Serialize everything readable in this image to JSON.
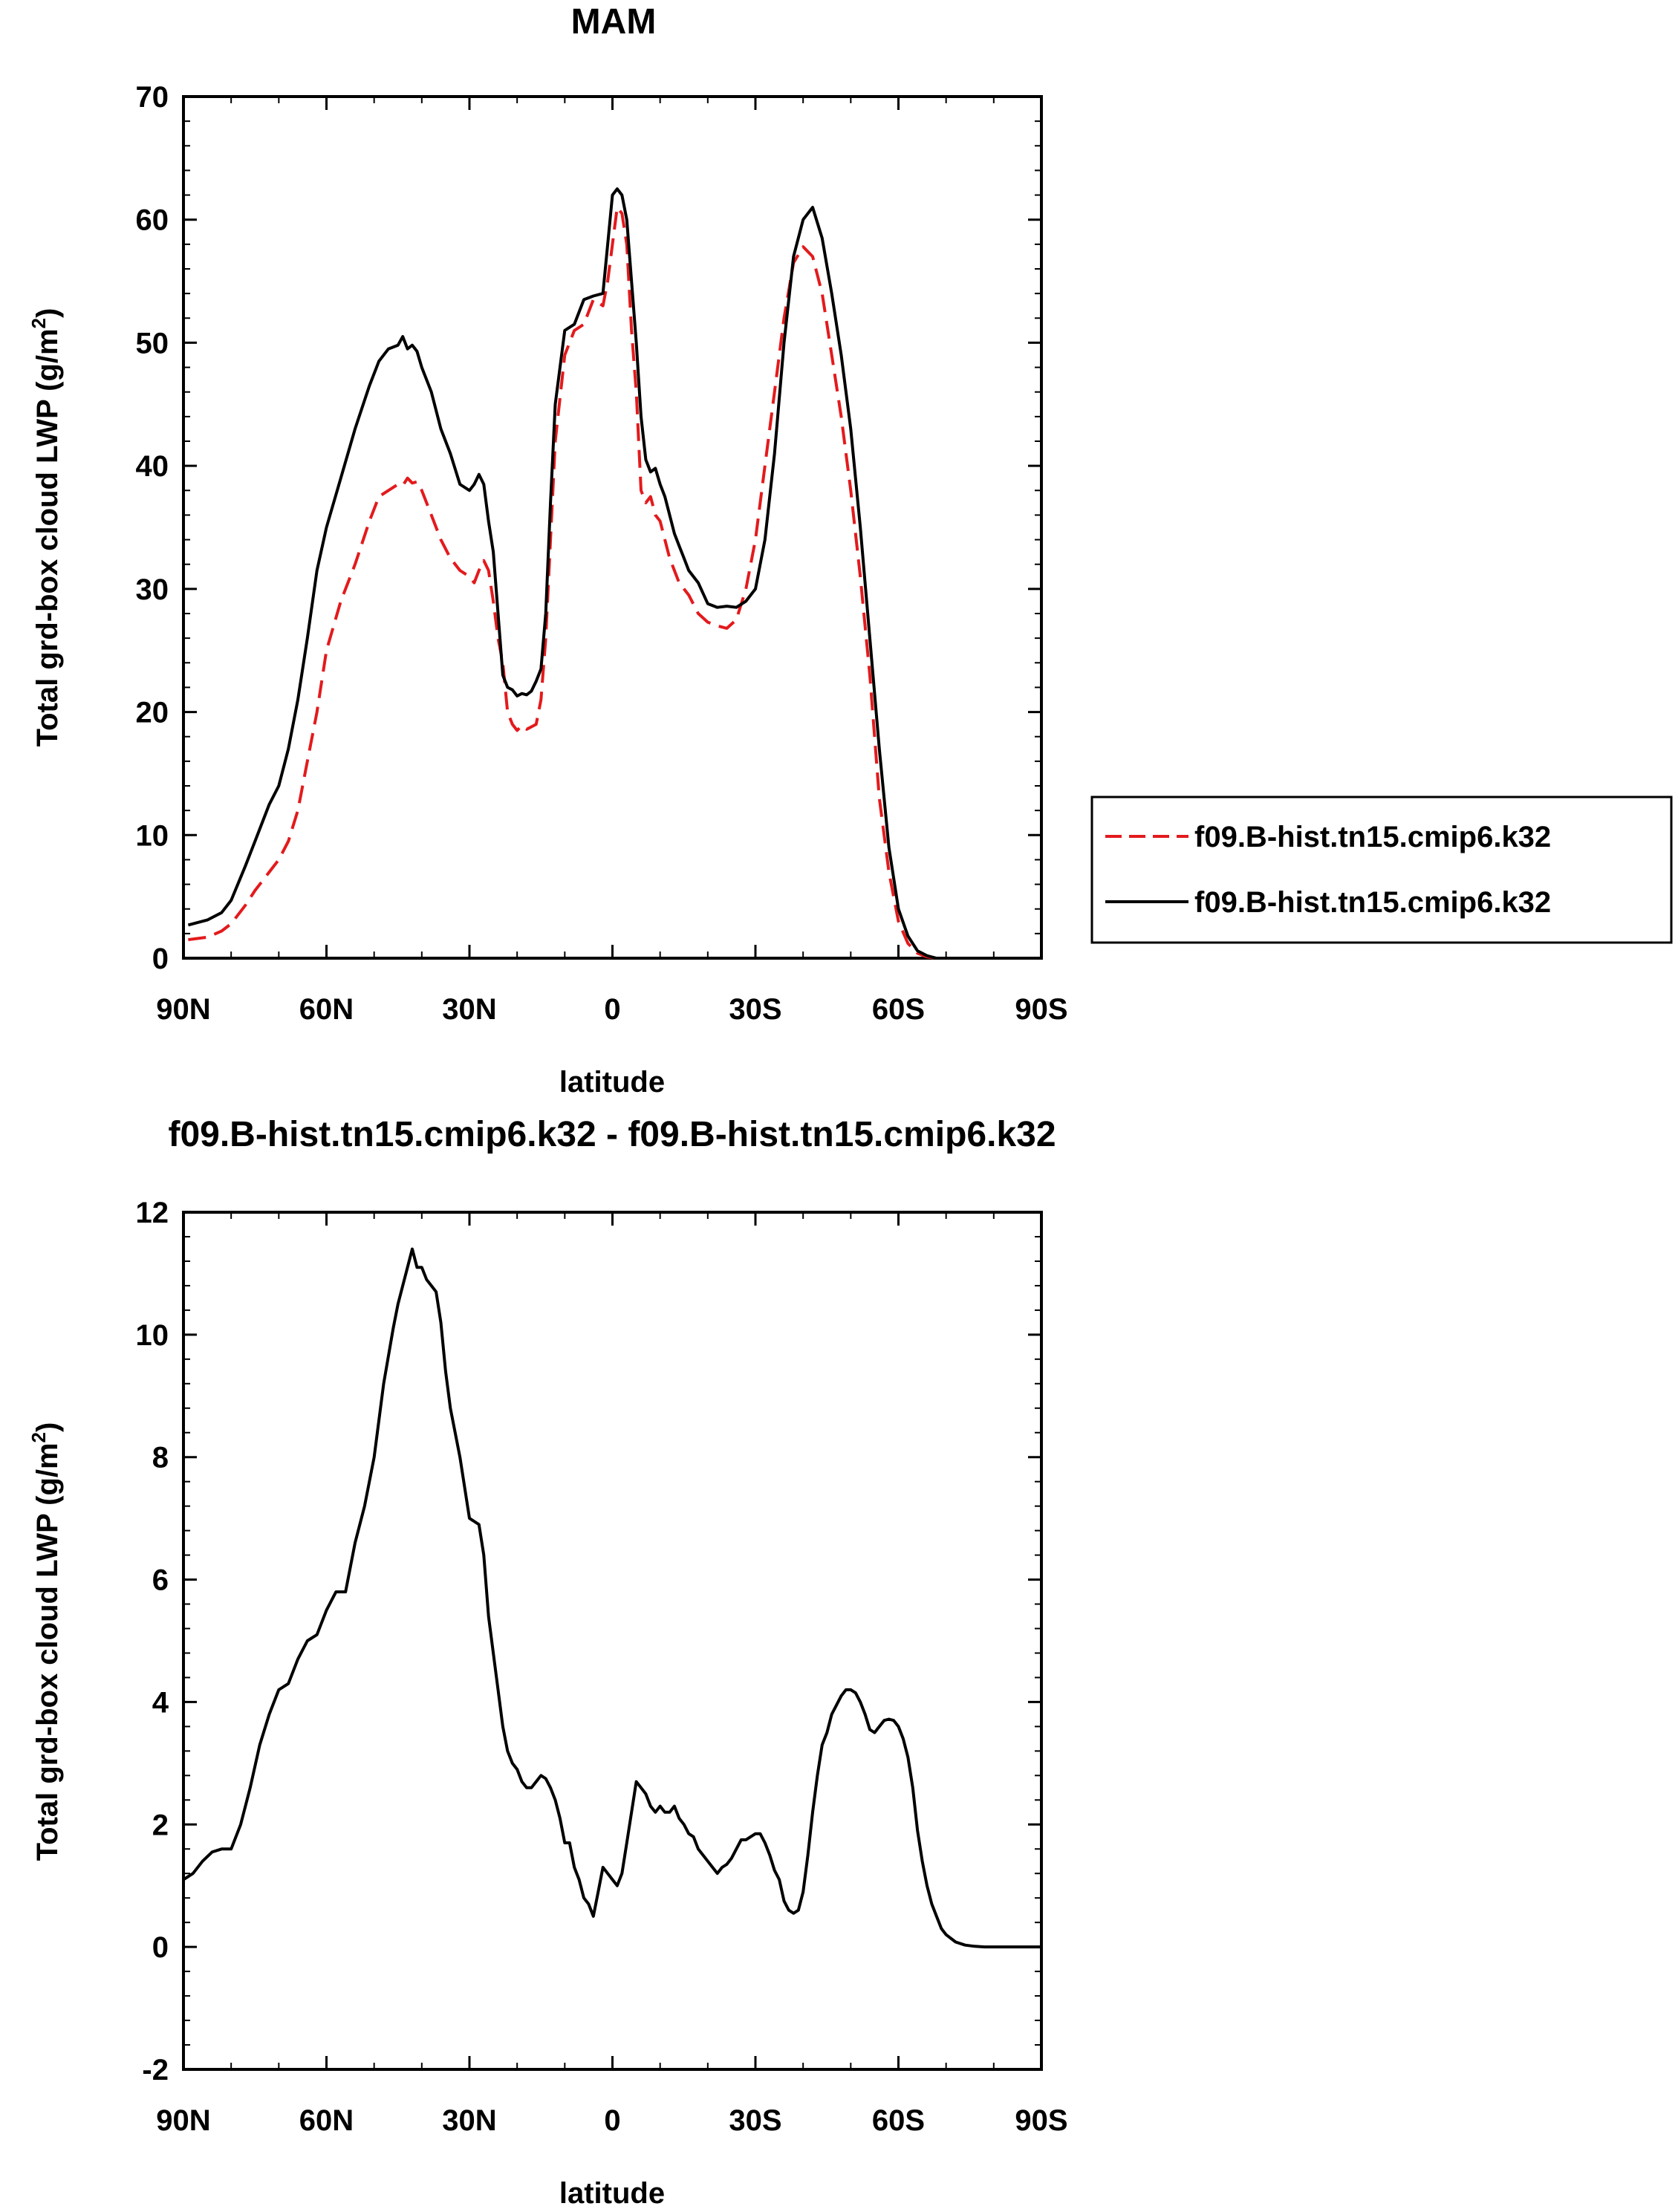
{
  "chart_data": [
    {
      "type": "line",
      "title": "MAM",
      "xlabel": "latitude",
      "ylabel": "Total grd-box cloud LWP (g/m2)",
      "ylabel_parts": {
        "main": "Total grd-box cloud LWP (g/m",
        "sup": "2",
        "end": ")"
      },
      "xlim": [
        90,
        -90
      ],
      "ylim": [
        0,
        70
      ],
      "xticks": [
        90,
        60,
        30,
        0,
        -30,
        -60,
        -90
      ],
      "xtick_labels": [
        "90N",
        "60N",
        "30N",
        "0",
        "30S",
        "60S",
        "90S"
      ],
      "yticks": [
        0,
        10,
        20,
        30,
        40,
        50,
        60,
        70
      ],
      "ytick_labels": [
        "0",
        "10",
        "20",
        "30",
        "40",
        "50",
        "60",
        "70"
      ],
      "x_minor_step": 10,
      "y_minor_step": 2,
      "grid": false,
      "legend_position": "right",
      "series": [
        {
          "name": "f09.B-hist.tn15.cmip6.k32",
          "color": "#e31a1c",
          "dash": "dashed",
          "x": [
            89,
            85,
            82,
            80,
            77,
            75,
            72,
            70,
            68,
            66,
            64,
            62,
            60,
            57,
            54,
            51,
            49,
            47,
            45,
            44,
            43,
            42,
            41,
            40,
            38,
            36,
            34,
            32,
            30,
            29,
            28,
            27,
            26,
            25,
            24,
            23,
            22,
            21,
            20,
            19,
            18,
            17,
            16,
            15,
            14,
            13,
            12,
            10,
            8,
            6,
            4,
            2,
            1,
            0,
            -1,
            -2,
            -3,
            -4,
            -5,
            -6,
            -7,
            -8,
            -9,
            -10,
            -11,
            -12,
            -13,
            -14,
            -15,
            -16,
            -18,
            -20,
            -22,
            -24,
            -26,
            -28,
            -30,
            -32,
            -34,
            -36,
            -38,
            -40,
            -42,
            -44,
            -46,
            -48,
            -50,
            -52,
            -54,
            -56,
            -58,
            -60,
            -62,
            -64,
            -66,
            -68,
            -70,
            -72,
            -74,
            -76,
            -78,
            -80,
            -85,
            -89
          ],
          "y": [
            1.5,
            1.7,
            2.2,
            2.8,
            4.3,
            5.5,
            7.0,
            8.0,
            9.5,
            12.0,
            16.0,
            20.0,
            25.0,
            29.0,
            32.0,
            35.5,
            37.5,
            38.0,
            38.5,
            38.4,
            39.0,
            38.6,
            38.7,
            38.0,
            36.0,
            34.0,
            32.5,
            31.5,
            31.0,
            30.5,
            31.5,
            32.3,
            31.5,
            29.0,
            26.0,
            24.0,
            20.0,
            19.0,
            18.5,
            18.9,
            18.6,
            18.8,
            19.0,
            21.0,
            26.0,
            34.0,
            42.0,
            49.0,
            51.0,
            51.5,
            53.5,
            53.0,
            55.0,
            58.0,
            61.0,
            60.5,
            58.0,
            51.0,
            46.0,
            38.0,
            37.0,
            37.5,
            36.0,
            35.5,
            34.0,
            32.5,
            31.5,
            30.5,
            30.0,
            29.5,
            28.0,
            27.3,
            27.0,
            26.8,
            27.5,
            30.0,
            34.0,
            40.0,
            46.0,
            52.0,
            56.5,
            57.8,
            57.0,
            54.0,
            49.0,
            44.0,
            38.0,
            31.0,
            23.0,
            13.0,
            7.0,
            3.0,
            1.2,
            0.4,
            0.1,
            0.0,
            0.0,
            0.0,
            0.0,
            0.0,
            0.0,
            0.0,
            0.0,
            0.0
          ]
        },
        {
          "name": "f09.B-hist.tn15.cmip6.k32",
          "color": "#000000",
          "dash": "solid",
          "x": [
            89,
            85,
            82,
            80,
            77,
            75,
            72,
            70,
            68,
            66,
            64,
            62,
            60,
            57,
            54,
            51,
            49,
            47,
            45,
            44,
            43,
            42,
            41,
            40,
            38,
            36,
            34,
            32,
            30,
            29,
            28,
            27,
            26,
            25,
            24,
            23,
            22,
            21,
            20,
            19,
            18,
            17,
            16,
            15,
            14,
            13,
            12,
            10,
            8,
            6,
            4,
            2,
            1,
            0,
            -1,
            -2,
            -3,
            -4,
            -5,
            -6,
            -7,
            -8,
            -9,
            -10,
            -11,
            -12,
            -13,
            -14,
            -15,
            -16,
            -18,
            -20,
            -22,
            -24,
            -26,
            -28,
            -30,
            -32,
            -34,
            -36,
            -38,
            -40,
            -42,
            -44,
            -46,
            -48,
            -50,
            -52,
            -54,
            -56,
            -58,
            -60,
            -62,
            -64,
            -66,
            -68,
            -70,
            -72,
            -74,
            -76,
            -78,
            -80,
            -85,
            -89
          ],
          "y": [
            2.7,
            3.1,
            3.7,
            4.7,
            7.5,
            9.5,
            12.5,
            14.0,
            17.0,
            21.0,
            26.0,
            31.5,
            35.0,
            39.0,
            43.0,
            46.5,
            48.5,
            49.5,
            49.8,
            50.5,
            49.5,
            49.8,
            49.3,
            48.0,
            46.0,
            43.0,
            41.0,
            38.5,
            38.0,
            38.5,
            39.3,
            38.5,
            35.5,
            33.0,
            28.0,
            23.0,
            22.0,
            21.8,
            21.3,
            21.5,
            21.4,
            21.7,
            22.5,
            23.5,
            28.0,
            37.0,
            45.0,
            51.0,
            51.5,
            53.5,
            53.8,
            54.0,
            58.0,
            62.0,
            62.5,
            62.0,
            60.0,
            55.0,
            50.0,
            44.0,
            40.5,
            39.5,
            39.8,
            38.5,
            37.5,
            36.0,
            34.5,
            33.5,
            32.5,
            31.5,
            30.5,
            28.8,
            28.5,
            28.6,
            28.5,
            29.0,
            30.0,
            34.0,
            41.0,
            50.0,
            57.0,
            60.0,
            61.0,
            58.5,
            54.0,
            49.0,
            43.0,
            35.0,
            26.0,
            17.0,
            9.0,
            4.0,
            1.8,
            0.6,
            0.2,
            0.0,
            0.0,
            0.0,
            0.0,
            0.0,
            0.0,
            0.0,
            0.0,
            0.0
          ]
        }
      ]
    },
    {
      "type": "line",
      "title": "f09.B-hist.tn15.cmip6.k32 - f09.B-hist.tn15.cmip6.k32",
      "xlabel": "latitude",
      "ylabel": "Total grd-box cloud LWP (g/m2)",
      "ylabel_parts": {
        "main": "Total grd-box cloud LWP (g/m",
        "sup": "2",
        "end": ")"
      },
      "xlim": [
        90,
        -90
      ],
      "ylim": [
        -2,
        12
      ],
      "xticks": [
        90,
        60,
        30,
        0,
        -30,
        -60,
        -90
      ],
      "xtick_labels": [
        "90N",
        "60N",
        "30N",
        "0",
        "30S",
        "60S",
        "90S"
      ],
      "yticks": [
        -2,
        0,
        2,
        4,
        6,
        8,
        10,
        12
      ],
      "ytick_labels": [
        "-2",
        "0",
        "2",
        "4",
        "6",
        "8",
        "10",
        "12"
      ],
      "x_minor_step": 10,
      "y_minor_step": 0.4,
      "grid": false,
      "series": [
        {
          "color": "#000000",
          "dash": "solid",
          "x": [
            90,
            88,
            86,
            84,
            82,
            80,
            78,
            76,
            74,
            72,
            70,
            68,
            66,
            64,
            62,
            60,
            58,
            56,
            54,
            52,
            50,
            48,
            46,
            45,
            44,
            43,
            42,
            41,
            40,
            39,
            38,
            37,
            36,
            35,
            34,
            32,
            30,
            28,
            27,
            26,
            25,
            24,
            23,
            22,
            21,
            20,
            19,
            18,
            17,
            16,
            15,
            14,
            13,
            12,
            11,
            10,
            9,
            8,
            7,
            6,
            5,
            4,
            3,
            2,
            1,
            0,
            -1,
            -2,
            -3,
            -4,
            -5,
            -6,
            -7,
            -8,
            -9,
            -10,
            -11,
            -12,
            -13,
            -14,
            -15,
            -16,
            -17,
            -18,
            -19,
            -20,
            -21,
            -22,
            -23,
            -24,
            -25,
            -26,
            -27,
            -28,
            -29,
            -30,
            -31,
            -32,
            -33,
            -34,
            -35,
            -36,
            -37,
            -38,
            -39,
            -40,
            -41,
            -42,
            -43,
            -44,
            -45,
            -46,
            -47,
            -48,
            -49,
            -50,
            -51,
            -52,
            -53,
            -54,
            -55,
            -56,
            -57,
            -58,
            -59,
            -60,
            -61,
            -62,
            -63,
            -64,
            -65,
            -66,
            -67,
            -68,
            -69,
            -70,
            -72,
            -74,
            -76,
            -78,
            -80,
            -85,
            -90
          ],
          "y": [
            1.1,
            1.2,
            1.4,
            1.55,
            1.6,
            1.6,
            2.0,
            2.6,
            3.3,
            3.8,
            4.2,
            4.3,
            4.7,
            5.0,
            5.1,
            5.5,
            5.8,
            5.8,
            6.6,
            7.2,
            8.0,
            9.2,
            10.1,
            10.5,
            10.8,
            11.1,
            11.4,
            11.1,
            11.1,
            10.9,
            10.8,
            10.7,
            10.2,
            9.4,
            8.8,
            8.0,
            7.0,
            6.9,
            6.4,
            5.4,
            4.8,
            4.2,
            3.6,
            3.2,
            3.0,
            2.9,
            2.7,
            2.6,
            2.6,
            2.7,
            2.8,
            2.75,
            2.6,
            2.4,
            2.1,
            1.7,
            1.7,
            1.3,
            1.1,
            0.8,
            0.7,
            0.5,
            0.9,
            1.3,
            1.2,
            1.1,
            1.0,
            1.2,
            1.7,
            2.2,
            2.7,
            2.6,
            2.5,
            2.3,
            2.2,
            2.3,
            2.2,
            2.2,
            2.3,
            2.1,
            2.0,
            1.85,
            1.8,
            1.6,
            1.5,
            1.4,
            1.3,
            1.2,
            1.3,
            1.35,
            1.45,
            1.6,
            1.75,
            1.75,
            1.8,
            1.85,
            1.85,
            1.7,
            1.5,
            1.25,
            1.1,
            0.75,
            0.6,
            0.55,
            0.6,
            0.9,
            1.5,
            2.2,
            2.8,
            3.3,
            3.5,
            3.8,
            3.95,
            4.1,
            4.2,
            4.2,
            4.15,
            4.0,
            3.8,
            3.55,
            3.5,
            3.6,
            3.7,
            3.72,
            3.7,
            3.6,
            3.4,
            3.1,
            2.6,
            1.9,
            1.4,
            1.0,
            0.7,
            0.5,
            0.3,
            0.2,
            0.08,
            0.03,
            0.01,
            0.0,
            0.0,
            0.0,
            0.0
          ]
        }
      ]
    }
  ]
}
